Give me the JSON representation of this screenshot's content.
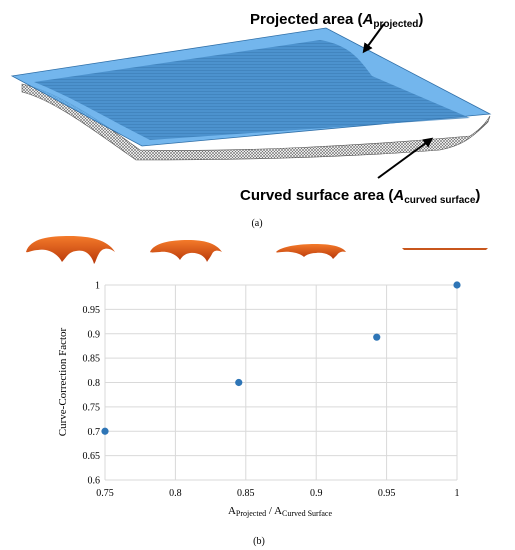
{
  "panel_a": {
    "projected_label_main": "Projected area (",
    "projected_label_var": "A",
    "projected_label_sub": "projected",
    "projected_label_close": ")",
    "curved_label_main": "Curved surface area (",
    "curved_label_var": "A",
    "curved_label_sub": "curved surface",
    "curved_label_close": ")",
    "caption": "(a)",
    "colors": {
      "plane": "#4a9ee0",
      "mesh": "#888888",
      "arrow": "#000000"
    }
  },
  "panel_b": {
    "caption": "(b)",
    "shape_color": "#e8560f"
  },
  "chart_data": {
    "type": "scatter",
    "x": [
      0.75,
      0.845,
      0.943,
      1.0
    ],
    "y": [
      0.7,
      0.8,
      0.893,
      1.0
    ],
    "xlim": [
      0.75,
      1.0
    ],
    "ylim": [
      0.6,
      1.0
    ],
    "xticks": [
      "0.75",
      "0.8",
      "0.85",
      "0.9",
      "0.95",
      "1"
    ],
    "yticks": [
      "0.6",
      "0.65",
      "0.7",
      "0.75",
      "0.8",
      "0.85",
      "0.9",
      "0.95",
      "1"
    ],
    "xlabel_main": "A",
    "xlabel_sub1": "Projected",
    "xlabel_mid": " / A",
    "xlabel_sub2": "Curved Surface",
    "ylabel": "Curve-Correction Factor",
    "grid": true,
    "marker_color": "#2e75b6"
  }
}
